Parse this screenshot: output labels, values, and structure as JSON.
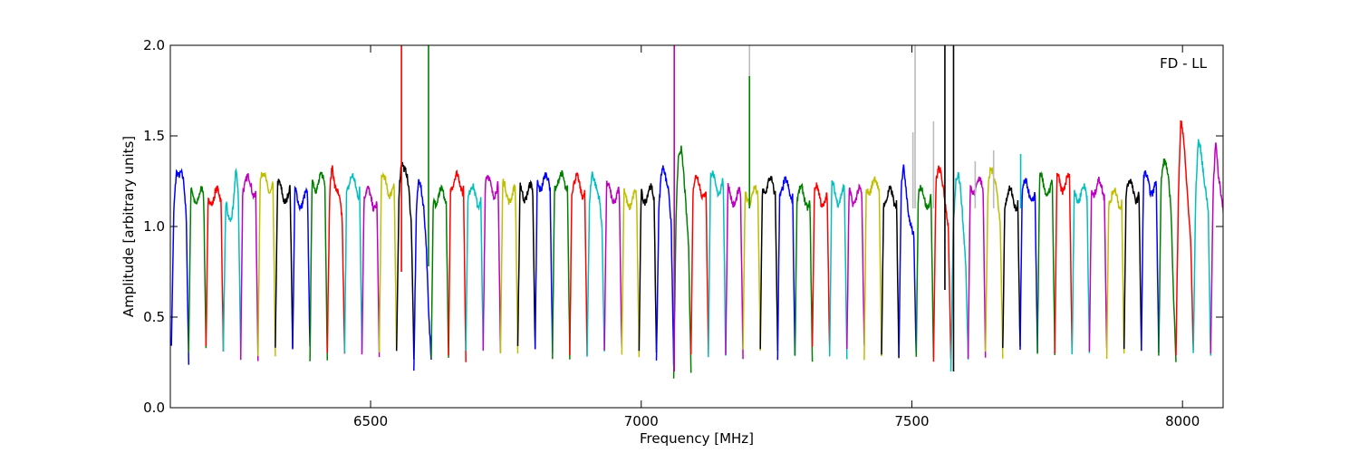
{
  "chart_data": {
    "type": "line",
    "annotation": "FD - LL",
    "xlabel": "Frequency [MHz]",
    "ylabel": "Amplitude [arbitrary units]",
    "xlim": [
      6130,
      8075
    ],
    "ylim": [
      0.0,
      2.0
    ],
    "x_ticks": [
      6500,
      7000,
      7500,
      8000
    ],
    "x_tick_labels": [
      "6500",
      "7000",
      "7500",
      "8000"
    ],
    "y_ticks": [
      0.0,
      0.5,
      1.0,
      1.5,
      2.0
    ],
    "y_tick_labels": [
      "0.0",
      "0.5",
      "1.0",
      "1.5",
      "2.0"
    ],
    "grid": false,
    "legend": "none",
    "color_cycle": [
      "#0000ff",
      "#008000",
      "#ff0000",
      "#00bfbf",
      "#bf00bf",
      "#bfbf00",
      "#000000"
    ],
    "background_trace_color": "#bbbbbb",
    "channel": {
      "start_mhz": 6132,
      "width_mhz": 32,
      "count": 61,
      "typical_plateau": 1.2,
      "typical_trough": 0.3
    },
    "series_samples": [
      {
        "channel_start_mhz": 6132,
        "color": "#0000ff",
        "y": [
          0.35,
          1.1,
          1.3,
          1.28,
          1.3,
          1.25,
          1.05,
          0.24
        ]
      },
      {
        "channel_start_mhz": 6228,
        "color": "#ff0000",
        "y": [
          0.33,
          1.15,
          1.05,
          1.03,
          1.1,
          1.32,
          1.2,
          0.3
        ]
      },
      {
        "channel_start_mhz": 6420,
        "color": "#ff0000",
        "y": [
          0.32,
          1.2,
          1.34,
          1.22,
          1.2,
          1.15,
          1.05,
          0.3
        ]
      },
      {
        "channel_start_mhz": 6548,
        "color": "#000000",
        "y": [
          0.3,
          1.2,
          1.36,
          1.32,
          1.3,
          1.2,
          1.0,
          0.28
        ]
      },
      {
        "channel_start_mhz": 6580,
        "color": "#0000ff",
        "y": [
          0.2,
          1.1,
          1.27,
          1.2,
          1.1,
          0.9,
          0.5,
          0.28
        ]
      },
      {
        "channel_start_mhz": 6900,
        "color": "#000000",
        "y": [
          0.3,
          1.15,
          1.3,
          1.25,
          1.2,
          1.15,
          1.0,
          0.3
        ]
      },
      {
        "channel_start_mhz": 7028,
        "color": "#00bfbf",
        "y": [
          0.25,
          1.1,
          1.3,
          1.33,
          1.25,
          1.2,
          1.0,
          0.25
        ]
      },
      {
        "channel_start_mhz": 7060,
        "color": "#bf00bf",
        "y": [
          0.17,
          1.1,
          1.4,
          1.43,
          1.3,
          1.1,
          0.9,
          0.2
        ]
      },
      {
        "channel_start_mhz": 7476,
        "color": "#00bfbf",
        "y": [
          0.3,
          1.25,
          1.33,
          1.2,
          1.05,
          1.0,
          0.95,
          0.3
        ]
      },
      {
        "channel_start_mhz": 7540,
        "color": "#bfbf00",
        "y": [
          0.25,
          1.25,
          1.32,
          1.3,
          1.2,
          1.1,
          1.0,
          0.25
        ]
      },
      {
        "channel_start_mhz": 7572,
        "color": "#000000",
        "y": [
          0.18,
          1.0,
          1.25,
          1.3,
          1.2,
          1.0,
          0.8,
          0.28
        ]
      },
      {
        "channel_start_mhz": 7636,
        "color": "#008000",
        "y": [
          0.3,
          1.2,
          1.32,
          1.3,
          1.25,
          1.15,
          1.0,
          0.28
        ]
      },
      {
        "channel_start_mhz": 7956,
        "color": "#bf00bf",
        "y": [
          0.28,
          1.25,
          1.36,
          1.35,
          1.25,
          1.1,
          0.6,
          0.27
        ]
      },
      {
        "channel_start_mhz": 7988,
        "color": "#bfbf00",
        "y": [
          0.3,
          1.2,
          1.6,
          1.5,
          1.3,
          1.1,
          0.9,
          0.3
        ]
      },
      {
        "channel_start_mhz": 8020,
        "color": "#000000",
        "y": [
          0.3,
          1.2,
          1.48,
          1.42,
          1.3,
          1.2,
          1.1,
          0.27
        ]
      },
      {
        "channel_start_mhz": 8052,
        "color": "#0000ff",
        "y": [
          0.3,
          1.2,
          1.48,
          1.3,
          1.2,
          1.1,
          0.8,
          0.26
        ]
      }
    ],
    "spikes": [
      {
        "x": 6557,
        "y_low": 0.75,
        "y_high": 2.0,
        "color": "#ff0000"
      },
      {
        "x": 6607,
        "y_low": 0.78,
        "y_high": 2.0,
        "color": "#008000"
      },
      {
        "x": 7061,
        "y_low": 0.2,
        "y_high": 2.0,
        "color": "#bf00bf"
      },
      {
        "x": 7200,
        "y_low": 1.1,
        "y_high": 2.0,
        "color": "#bbbbbb"
      },
      {
        "x": 7200,
        "y_low": 1.1,
        "y_high": 1.83,
        "color": "#008000"
      },
      {
        "x": 7502,
        "y_low": 1.1,
        "y_high": 1.52,
        "color": "#bbbbbb"
      },
      {
        "x": 7506,
        "y_low": 1.1,
        "y_high": 2.0,
        "color": "#bbbbbb"
      },
      {
        "x": 7540,
        "y_low": 1.1,
        "y_high": 1.58,
        "color": "#bbbbbb"
      },
      {
        "x": 7561,
        "y_low": 0.65,
        "y_high": 2.0,
        "color": "#000000"
      },
      {
        "x": 7577,
        "y_low": 0.2,
        "y_high": 2.0,
        "color": "#000000"
      },
      {
        "x": 7617,
        "y_low": 1.1,
        "y_high": 1.36,
        "color": "#bbbbbb"
      },
      {
        "x": 7651,
        "y_low": 1.1,
        "y_high": 1.42,
        "color": "#bbbbbb"
      },
      {
        "x": 7701,
        "y_low": 1.1,
        "y_high": 1.4,
        "color": "#00bfbf"
      }
    ]
  }
}
